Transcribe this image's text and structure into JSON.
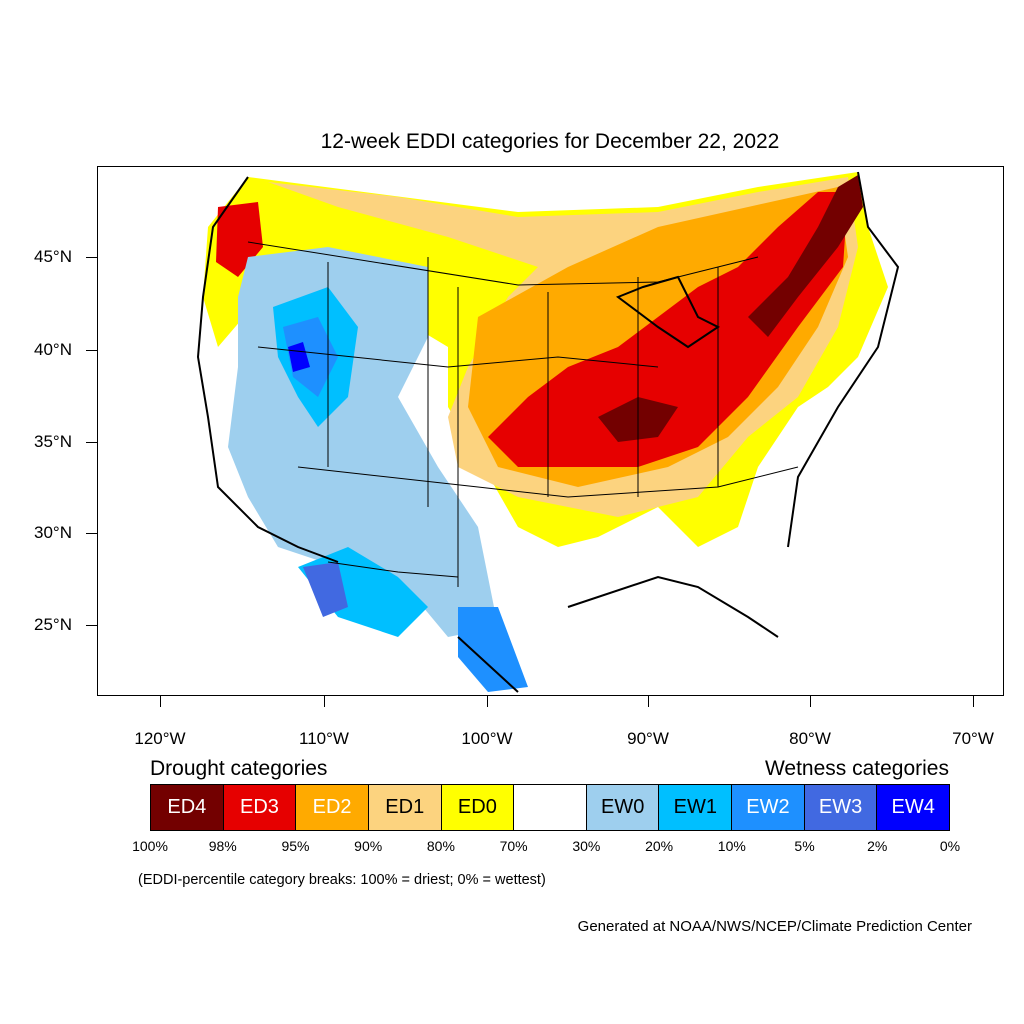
{
  "title": "12-week EDDI categories for December 22, 2022",
  "lat_labels": [
    "45°N",
    "40°N",
    "35°N",
    "30°N",
    "25°N"
  ],
  "lon_labels": [
    "120°W",
    "110°W",
    "100°W",
    "90°W",
    "80°W",
    "70°W"
  ],
  "legend": {
    "drought_title": "Drought categories",
    "wetness_title": "Wetness categories",
    "categories": [
      {
        "label": "ED4",
        "color": "#730000",
        "text_color": "#ffffff"
      },
      {
        "label": "ED3",
        "color": "#e60000",
        "text_color": "#ffffff"
      },
      {
        "label": "ED2",
        "color": "#ffaa00",
        "text_color": "#ffffff"
      },
      {
        "label": "ED1",
        "color": "#fcd37f",
        "text_color": "#000000"
      },
      {
        "label": "ED0",
        "color": "#ffff00",
        "text_color": "#000000"
      },
      {
        "label": "",
        "color": "#ffffff",
        "text_color": "#000000"
      },
      {
        "label": "EW0",
        "color": "#9ecfee",
        "text_color": "#000000"
      },
      {
        "label": "EW1",
        "color": "#00bfff",
        "text_color": "#000000"
      },
      {
        "label": "EW2",
        "color": "#1e90ff",
        "text_color": "#ffffff"
      },
      {
        "label": "EW3",
        "color": "#4169e1",
        "text_color": "#ffffff"
      },
      {
        "label": "EW4",
        "color": "#0000ff",
        "text_color": "#ffffff"
      }
    ],
    "breaks": [
      "100%",
      "98%",
      "95%",
      "90%",
      "80%",
      "70%",
      "30%",
      "20%",
      "10%",
      "5%",
      "2%",
      "0%"
    ]
  },
  "note": "(EDDI-percentile category breaks: 100% = driest; 0% = wettest)",
  "credit": "Generated at NOAA/NWS/NCEP/Climate Prediction Center"
}
